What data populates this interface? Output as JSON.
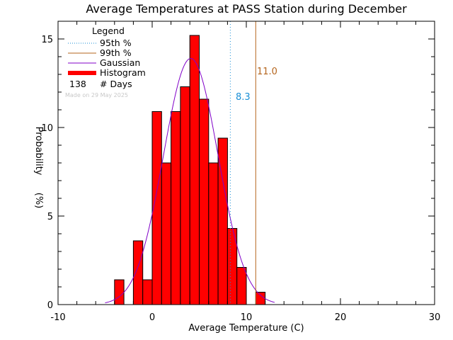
{
  "chart_data": {
    "type": "bar",
    "title": "Average Temperatures at PASS Station during December",
    "xlabel": "Average Temperature (C)",
    "ylabel": "Probability",
    "ylabel_unit": "(%)",
    "xlim": [
      -10,
      30
    ],
    "ylim": [
      0,
      16
    ],
    "xticks": [
      "-10",
      "0",
      "10",
      "20",
      "30"
    ],
    "yticks": [
      "0",
      "5",
      "10",
      "15"
    ],
    "bin_width": 1,
    "bins": [
      {
        "x": -4,
        "value": 1.4
      },
      {
        "x": -3,
        "value": 0.0
      },
      {
        "x": -2,
        "value": 3.6
      },
      {
        "x": -1,
        "value": 1.4
      },
      {
        "x": 0,
        "value": 10.9
      },
      {
        "x": 1,
        "value": 8.0
      },
      {
        "x": 2,
        "value": 10.9
      },
      {
        "x": 3,
        "value": 12.3
      },
      {
        "x": 4,
        "value": 15.2
      },
      {
        "x": 5,
        "value": 11.6
      },
      {
        "x": 6,
        "value": 8.0
      },
      {
        "x": 7,
        "value": 9.4
      },
      {
        "x": 8,
        "value": 4.3
      },
      {
        "x": 9,
        "value": 2.1
      },
      {
        "x": 10,
        "value": 0.0
      },
      {
        "x": 11,
        "value": 0.7
      }
    ],
    "gaussian": {
      "mean": 4.1,
      "sd": 2.9,
      "peak": 13.9,
      "x_range": [
        -5,
        13
      ]
    },
    "p95": {
      "value": 8.3,
      "label": "8.3",
      "color": "#1a8fd6"
    },
    "p99": {
      "value": 11.0,
      "label": "11.0",
      "color": "#b5651d"
    },
    "colors": {
      "histogram": "#ff0000",
      "gaussian": "#8000c8",
      "axes": "#000000",
      "stamp": "#c8c8c8"
    },
    "legend": {
      "title": "Legend",
      "placement": "top-left",
      "entries": [
        {
          "label": "95th %",
          "style": "dotted",
          "color": "#1a8fd6"
        },
        {
          "label": "99th %",
          "style": "solid",
          "color": "#b5651d"
        },
        {
          "label": "Gaussian",
          "style": "solid",
          "color": "#8000c8"
        },
        {
          "label": "Histogram",
          "style": "thick",
          "color": "#ff0000"
        }
      ],
      "count": "138",
      "count_label": "# Days"
    },
    "stamp": "Made on 29 May 2025"
  }
}
